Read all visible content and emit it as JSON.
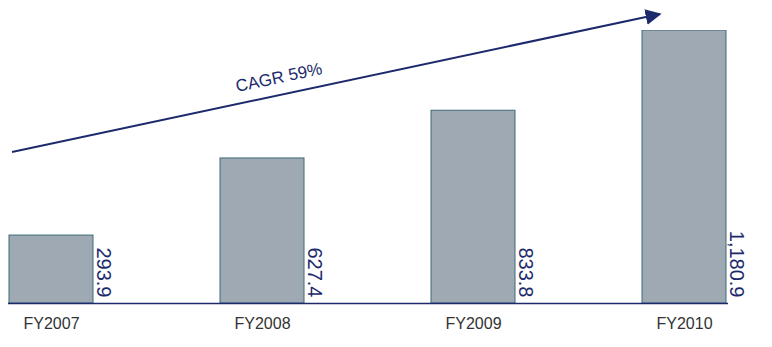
{
  "chart_data": {
    "type": "bar",
    "categories": [
      "FY2007",
      "FY2008",
      "FY2009",
      "FY2010"
    ],
    "values": [
      293.9,
      627.4,
      833.8,
      1180.9
    ],
    "value_labels": [
      "293.9",
      "627.4",
      "833.8",
      "1,180.9"
    ],
    "data_labels": true,
    "tick_labels": "x",
    "color": "#9fa9b3",
    "annotations": [
      "CAGR 59%"
    ]
  }
}
